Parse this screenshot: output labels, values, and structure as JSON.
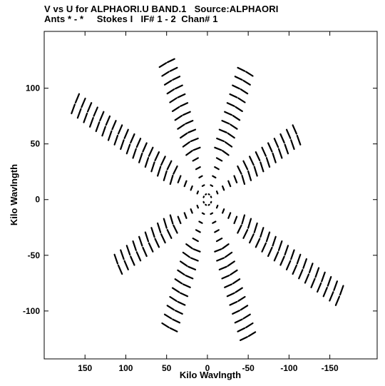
{
  "chart_data": {
    "type": "scatter",
    "title": "V vs U for ALPHAORI.U BAND.1   Source:ALPHAORI",
    "subtitle": "Ants * - *     Stokes I   IF# 1 - 2  Chan# 1",
    "xlabel": "Kilo Wavlngth",
    "ylabel": "Kilo Wavlngth",
    "xlim": [
      200,
      -208
    ],
    "ylim": [
      -143,
      151
    ],
    "x_ticks": [
      150,
      100,
      50,
      0,
      -50,
      -100,
      -150
    ],
    "y_ticks": [
      100,
      50,
      0,
      -50,
      -100
    ],
    "marker_color": "#000000",
    "grid": false,
    "uv_arms": [
      {
        "angle_deg": 28,
        "length": 185
      },
      {
        "angle_deg": 68,
        "length": 140
      },
      {
        "angle_deg": 112,
        "length": 125
      },
      {
        "angle_deg": 152,
        "length": 130
      },
      {
        "angle_deg": 208,
        "length": 185
      },
      {
        "angle_deg": 248,
        "length": 140
      },
      {
        "angle_deg": 292,
        "length": 125
      },
      {
        "angle_deg": 332,
        "length": 130
      }
    ],
    "uv_ring_step": 8.5
  }
}
